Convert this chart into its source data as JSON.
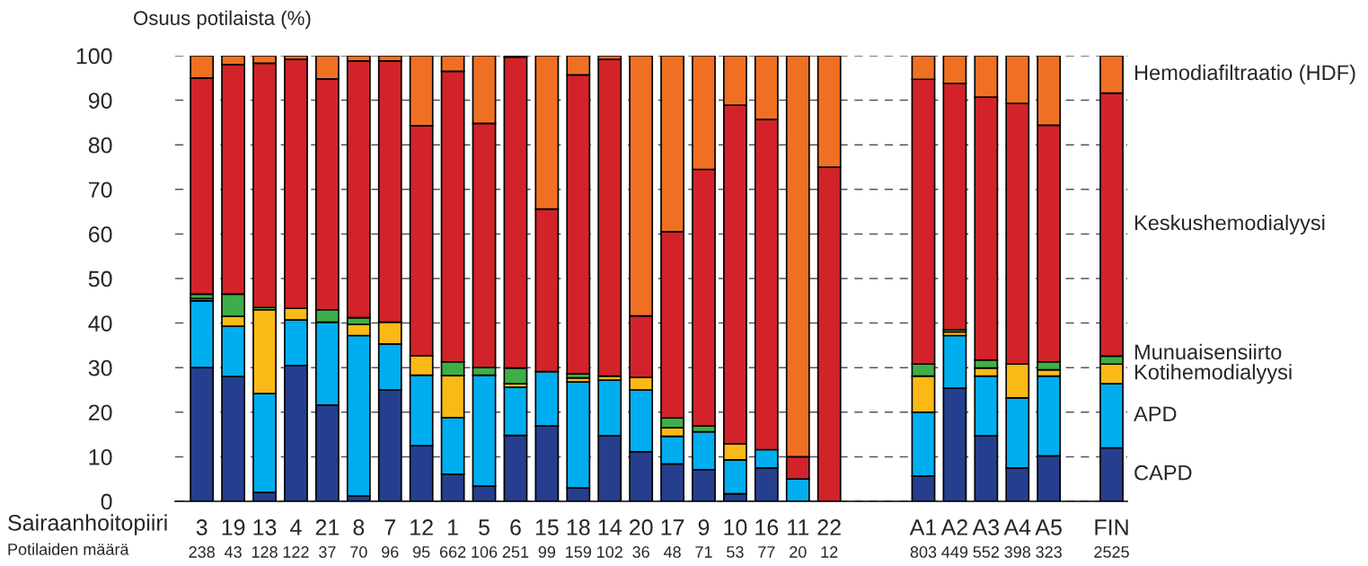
{
  "chart_data": {
    "type": "bar",
    "stacked": true,
    "ylabel": "Osuus potilaista (%)",
    "xlabel": "Sairaanhoitopiiri",
    "categories": [
      "3",
      "19",
      "13",
      "4",
      "21",
      "8",
      "7",
      "12",
      "1",
      "5",
      "6",
      "15",
      "18",
      "14",
      "20",
      "17",
      "9",
      "10",
      "16",
      "11",
      "22",
      null,
      null,
      "A1",
      "A2",
      "A3",
      "A4",
      "A5",
      null,
      "FIN"
    ],
    "series": [
      {
        "name": "CAPD",
        "color": "#253f8e",
        "values": [
          30,
          28,
          2,
          30.5,
          21.6,
          1.2,
          25,
          12.5,
          6.1,
          3.4,
          14.8,
          16.9,
          3,
          14.7,
          11.1,
          8.4,
          7.1,
          1.7,
          7.5,
          0,
          0,
          null,
          null,
          5.7,
          25.4,
          14.7,
          7.5,
          10.2,
          null,
          12
        ]
      },
      {
        "name": "APD",
        "color": "#00aeef",
        "values": [
          15,
          11.3,
          22.2,
          10.2,
          18.6,
          36,
          10.3,
          15.8,
          12.7,
          24.9,
          10.8,
          12.2,
          23.8,
          12.5,
          13.9,
          6.2,
          8.5,
          7.6,
          4.1,
          5,
          0,
          null,
          null,
          14.3,
          11.8,
          13.4,
          15.7,
          17.9,
          null,
          14.4
        ]
      },
      {
        "name": "Kotihemodialyysi",
        "color": "#fbb917",
        "values": [
          0.5,
          2.2,
          18.8,
          2.6,
          0,
          2.5,
          4.9,
          4.4,
          9.4,
          0,
          0.8,
          0,
          0.9,
          0.9,
          2.8,
          1.9,
          0,
          3.6,
          0,
          0,
          0,
          null,
          null,
          8.1,
          0.8,
          1.8,
          7.6,
          1.4,
          null,
          4.4
        ]
      },
      {
        "name": "Munuaisensiirto",
        "color": "#3fae49",
        "values": [
          1,
          5,
          0.5,
          0,
          2.8,
          1.5,
          0,
          0,
          3.1,
          1.7,
          3.5,
          0,
          0.9,
          0,
          0,
          2.2,
          1.3,
          0,
          0,
          0,
          0,
          null,
          null,
          2.7,
          0.5,
          1.8,
          0,
          1.8,
          null,
          1.8
        ]
      },
      {
        "name": "Keskushemodialyysi",
        "color": "#d2232a",
        "values": [
          48.5,
          51.5,
          54.8,
          55.9,
          51.8,
          57.6,
          58.6,
          51.6,
          65.2,
          54.8,
          69.8,
          36.5,
          67.1,
          71.1,
          13.8,
          41.8,
          57.6,
          76,
          74.1,
          5,
          75,
          null,
          null,
          63.9,
          55.3,
          59,
          58.5,
          53.1,
          null,
          59
        ]
      },
      {
        "name": "Hemodiafiltraatio (HDF)",
        "color": "#f07023",
        "values": [
          5,
          2,
          1.7,
          0.8,
          5.2,
          1.2,
          1.2,
          15.7,
          3.5,
          15.2,
          0.3,
          34.4,
          4.3,
          0.8,
          58.4,
          39.5,
          25.5,
          11.1,
          14.3,
          90,
          25,
          null,
          null,
          5.3,
          6.2,
          9.3,
          10.7,
          15.6,
          null,
          8.4
        ]
      }
    ],
    "ylim": [
      0,
      100
    ],
    "yticks": [
      0,
      10,
      20,
      30,
      40,
      50,
      60,
      70,
      80,
      90,
      100
    ],
    "grid": "y",
    "legend": false,
    "annotations": [
      "Potilaiden määrä",
      "238",
      "43",
      "128",
      "122",
      "37",
      "70",
      "96",
      "95",
      "662",
      "106",
      "251",
      "99",
      "159",
      "102",
      "36",
      "48",
      "71",
      "53",
      "77",
      "20",
      "12",
      "803",
      "449",
      "552",
      "398",
      "323",
      "2525"
    ]
  }
}
